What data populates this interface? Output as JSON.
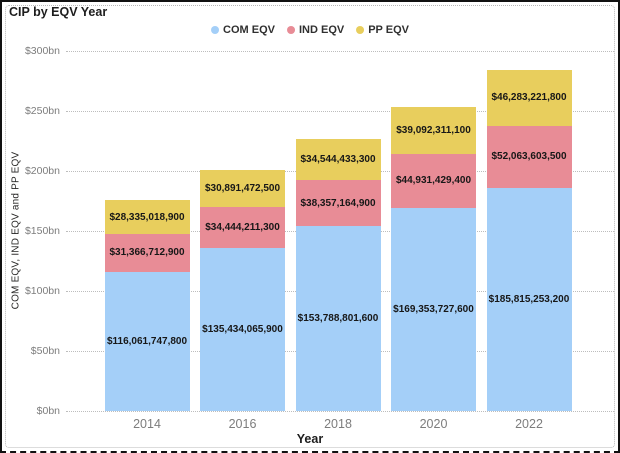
{
  "window": {
    "title": "CIP by EQV Year"
  },
  "legend": [
    {
      "label": "COM EQV",
      "color": "#a4cff8"
    },
    {
      "label": "IND EQV",
      "color": "#e88c96"
    },
    {
      "label": "PP EQV",
      "color": "#e8ce5d"
    }
  ],
  "y_axis": {
    "title": "COM EQV, IND EQV and PP EQV",
    "ticks": [
      "$0bn",
      "$50bn",
      "$100bn",
      "$150bn",
      "$200bn",
      "$250bn",
      "$300bn"
    ]
  },
  "x_axis": {
    "title": "Year"
  },
  "chart_data": {
    "type": "bar",
    "stacked": true,
    "title": "CIP by EQV Year",
    "xlabel": "Year",
    "ylabel": "COM EQV, IND EQV and PP EQV",
    "ylim_bn": [
      0,
      300
    ],
    "tick_step_bn": 50,
    "grid": "dotted-horizontal",
    "legend_position": "top-center",
    "categories": [
      "2014",
      "2016",
      "2018",
      "2020",
      "2022"
    ],
    "series": [
      {
        "name": "COM EQV",
        "color": "#a4cff8",
        "values": [
          116061747800,
          135434065900,
          153788801600,
          169353727600,
          185815253200
        ],
        "labels": [
          "$116,061,747,800",
          "$135,434,065,900",
          "$153,788,801,600",
          "$169,353,727,600",
          "$185,815,253,200"
        ]
      },
      {
        "name": "IND EQV",
        "color": "#e88c96",
        "values": [
          31366712900,
          34444211300,
          38357164900,
          44931429400,
          52063603500
        ],
        "labels": [
          "$31,366,712,900",
          "$34,444,211,300",
          "$38,357,164,900",
          "$44,931,429,400",
          "$52,063,603,500"
        ]
      },
      {
        "name": "PP EQV",
        "color": "#e8ce5d",
        "values": [
          28335018900,
          30891472500,
          34544433300,
          39092311100,
          46283221800
        ],
        "labels": [
          "$28,335,018,900",
          "$30,891,472,500",
          "$34,544,433,300",
          "$39,092,311,100",
          "$46,283,221,800"
        ]
      }
    ]
  }
}
